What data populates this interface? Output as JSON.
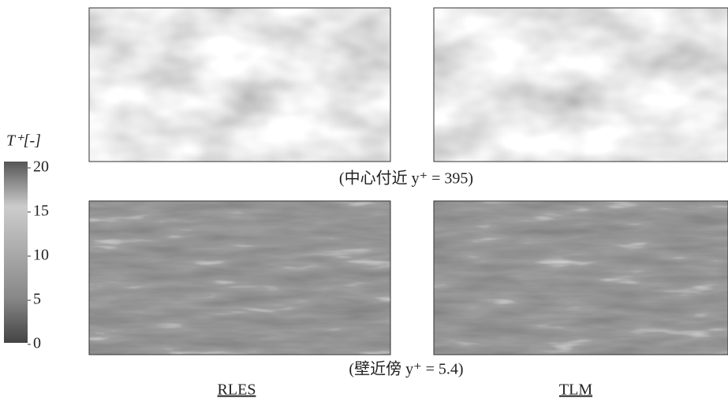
{
  "colorbar": {
    "label": "T⁺[-]",
    "range": [
      0,
      20
    ],
    "ticks": [
      0,
      5,
      10,
      15,
      20
    ]
  },
  "rows": [
    {
      "caption": "(中心付近 y⁺ = 395)"
    },
    {
      "caption": "(壁近傍 y⁺ = 5.4)"
    }
  ],
  "columns": [
    {
      "label": "RLES"
    },
    {
      "label": "TLM"
    }
  ]
}
